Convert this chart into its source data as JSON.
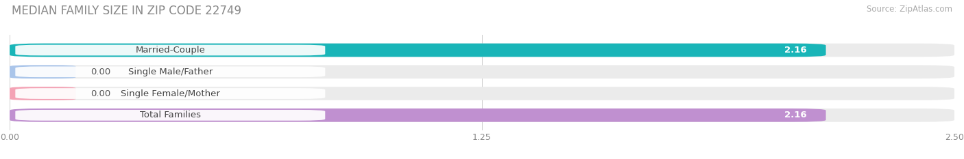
{
  "title": "MEDIAN FAMILY SIZE IN ZIP CODE 22749",
  "source": "Source: ZipAtlas.com",
  "categories": [
    "Married-Couple",
    "Single Male/Father",
    "Single Female/Mother",
    "Total Families"
  ],
  "values": [
    2.16,
    0.0,
    0.0,
    2.16
  ],
  "bar_colors": [
    "#19b5b8",
    "#aac5ea",
    "#f4a3b5",
    "#c090d0"
  ],
  "value_labels": [
    "2.16",
    "0.00",
    "0.00",
    "2.16"
  ],
  "xlim": [
    0,
    2.5
  ],
  "xticks": [
    0.0,
    1.25,
    2.5
  ],
  "xtick_labels": [
    "0.00",
    "1.25",
    "2.50"
  ],
  "background_color": "#ffffff",
  "bar_bg_color": "#ebebeb",
  "title_fontsize": 12,
  "source_fontsize": 8.5,
  "label_fontsize": 9.5,
  "value_fontsize": 9.5,
  "bar_height": 0.62,
  "figsize": [
    14.06,
    2.33
  ],
  "dpi": 100
}
